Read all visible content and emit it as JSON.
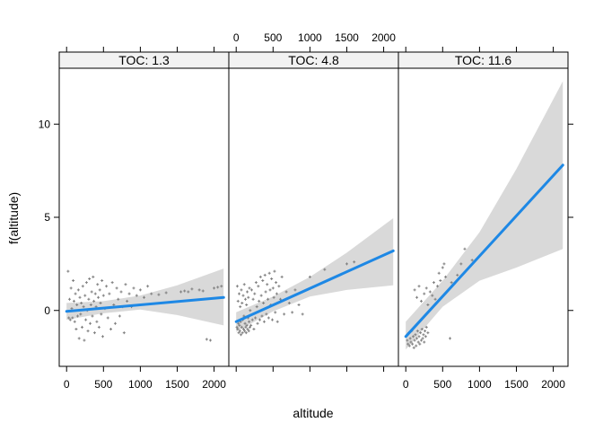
{
  "chart_data": {
    "type": "scatter",
    "title": "",
    "xlabel": "altitude",
    "ylabel": "f(altitude)",
    "xlim": [
      -100,
      2200
    ],
    "ylim": [
      -3,
      13
    ],
    "x_ticks": [
      0,
      500,
      1000,
      1500,
      2000
    ],
    "x_tick_labels": [
      "0",
      "500",
      "1000",
      "1500",
      "2000"
    ],
    "y_ticks": [
      0,
      5,
      10
    ],
    "y_tick_labels": [
      "0",
      "5",
      "10"
    ],
    "colors": {
      "fit_line": "#1e88e5",
      "band": "#d9d9d9",
      "points": "#808080",
      "strip": "#f2f2f2"
    },
    "panels": [
      {
        "label": "TOC: 1.3",
        "fit": {
          "x": [
            0,
            2130
          ],
          "y": [
            -0.05,
            0.7
          ]
        },
        "band": {
          "x": [
            0,
            500,
            1000,
            1500,
            2130
          ],
          "lower": [
            -0.5,
            -0.15,
            0.05,
            -0.25,
            -0.8
          ],
          "upper": [
            0.4,
            0.5,
            0.8,
            1.35,
            2.25
          ]
        },
        "points": [
          [
            20,
            2.1
          ],
          [
            30,
            -0.4
          ],
          [
            40,
            0.6
          ],
          [
            50,
            -0.5
          ],
          [
            60,
            1.2
          ],
          [
            70,
            0.1
          ],
          [
            80,
            -0.4
          ],
          [
            90,
            1.6
          ],
          [
            100,
            0.5
          ],
          [
            110,
            -0.6
          ],
          [
            120,
            0.9
          ],
          [
            130,
            -1.0
          ],
          [
            140,
            0.3
          ],
          [
            150,
            -0.3
          ],
          [
            160,
            1.1
          ],
          [
            170,
            -1.5
          ],
          [
            180,
            0.7
          ],
          [
            190,
            -0.2
          ],
          [
            200,
            0.4
          ],
          [
            210,
            -0.9
          ],
          [
            220,
            1.3
          ],
          [
            230,
            0.2
          ],
          [
            240,
            -1.6
          ],
          [
            250,
            0.8
          ],
          [
            260,
            -0.5
          ],
          [
            270,
            1.5
          ],
          [
            280,
            0.0
          ],
          [
            290,
            -1.1
          ],
          [
            300,
            0.6
          ],
          [
            310,
            1.7
          ],
          [
            320,
            -0.7
          ],
          [
            330,
            0.3
          ],
          [
            340,
            1.0
          ],
          [
            350,
            -0.3
          ],
          [
            360,
            1.8
          ],
          [
            370,
            0.5
          ],
          [
            380,
            -1.2
          ],
          [
            390,
            0.9
          ],
          [
            400,
            0.2
          ],
          [
            410,
            -0.6
          ],
          [
            420,
            1.4
          ],
          [
            430,
            0.7
          ],
          [
            440,
            -0.9
          ],
          [
            450,
            1.1
          ],
          [
            460,
            0.4
          ],
          [
            470,
            -0.2
          ],
          [
            480,
            1.6
          ],
          [
            490,
            -1.4
          ],
          [
            500,
            0.8
          ],
          [
            520,
            0.1
          ],
          [
            540,
            1.3
          ],
          [
            560,
            -0.4
          ],
          [
            580,
            0.9
          ],
          [
            600,
            -1.0
          ],
          [
            620,
            1.5
          ],
          [
            640,
            0.3
          ],
          [
            660,
            -0.7
          ],
          [
            680,
            1.2
          ],
          [
            700,
            0.6
          ],
          [
            720,
            -0.3
          ],
          [
            740,
            1.0
          ],
          [
            760,
            0.2
          ],
          [
            780,
            -1.2
          ],
          [
            800,
            1.4
          ],
          [
            820,
            0.5
          ],
          [
            850,
            0.9
          ],
          [
            880,
            0.2
          ],
          [
            910,
            1.2
          ],
          [
            950,
            0.8
          ],
          [
            1000,
            1.1
          ],
          [
            1050,
            0.7
          ],
          [
            1100,
            1.3
          ],
          [
            1150,
            0.9
          ],
          [
            1250,
            0.85
          ],
          [
            1350,
            0.95
          ],
          [
            1550,
            1.0
          ],
          [
            1600,
            1.05
          ],
          [
            1650,
            1.0
          ],
          [
            1700,
            1.15
          ],
          [
            1800,
            1.1
          ],
          [
            1850,
            1.05
          ],
          [
            1900,
            -1.55
          ],
          [
            1950,
            -1.6
          ],
          [
            2000,
            1.2
          ],
          [
            2050,
            1.25
          ],
          [
            2100,
            1.3
          ]
        ]
      },
      {
        "label": "TOC: 4.8",
        "fit": {
          "x": [
            0,
            2130
          ],
          "y": [
            -0.6,
            3.2
          ]
        },
        "band": {
          "x": [
            0,
            500,
            1000,
            1500,
            2130
          ],
          "lower": [
            -1.15,
            -0.05,
            0.75,
            1.1,
            1.35
          ],
          "upper": [
            -0.1,
            0.75,
            1.8,
            3.1,
            4.95
          ]
        },
        "points": [
          [
            10,
            -0.9
          ],
          [
            15,
            1.3
          ],
          [
            20,
            -1.0
          ],
          [
            25,
            0.5
          ],
          [
            30,
            -0.7
          ],
          [
            35,
            -1.2
          ],
          [
            40,
            0.9
          ],
          [
            45,
            -0.8
          ],
          [
            50,
            -1.1
          ],
          [
            55,
            0.2
          ],
          [
            60,
            -0.6
          ],
          [
            65,
            -1.3
          ],
          [
            70,
            1.1
          ],
          [
            75,
            -0.9
          ],
          [
            80,
            0.4
          ],
          [
            85,
            -1.2
          ],
          [
            90,
            -0.5
          ],
          [
            95,
            0.8
          ],
          [
            100,
            -1.0
          ],
          [
            105,
            -0.3
          ],
          [
            110,
            1.4
          ],
          [
            115,
            -1.1
          ],
          [
            120,
            -0.7
          ],
          [
            125,
            0.6
          ],
          [
            130,
            -0.9
          ],
          [
            135,
            -1.2
          ],
          [
            140,
            0.3
          ],
          [
            145,
            -0.8
          ],
          [
            150,
            1.0
          ],
          [
            155,
            -1.0
          ],
          [
            160,
            -0.4
          ],
          [
            165,
            0.7
          ],
          [
            170,
            -1.1
          ],
          [
            175,
            -0.6
          ],
          [
            180,
            1.2
          ],
          [
            185,
            -0.9
          ],
          [
            190,
            0.0
          ],
          [
            200,
            -0.8
          ],
          [
            210,
            1.1
          ],
          [
            220,
            -0.5
          ],
          [
            230,
            0.6
          ],
          [
            240,
            -1.0
          ],
          [
            250,
            0.9
          ],
          [
            260,
            -0.4
          ],
          [
            270,
            1.5
          ],
          [
            280,
            0.2
          ],
          [
            290,
            -0.7
          ],
          [
            300,
            1.3
          ],
          [
            310,
            0.5
          ],
          [
            320,
            -0.5
          ],
          [
            330,
            1.8
          ],
          [
            340,
            0.8
          ],
          [
            350,
            -0.3
          ],
          [
            360,
            1.6
          ],
          [
            370,
            0.4
          ],
          [
            380,
            -0.6
          ],
          [
            390,
            1.9
          ],
          [
            400,
            1.0
          ],
          [
            410,
            -0.2
          ],
          [
            420,
            1.4
          ],
          [
            430,
            0.6
          ],
          [
            440,
            -0.4
          ],
          [
            450,
            2.0
          ],
          [
            460,
            1.1
          ],
          [
            470,
            0.3
          ],
          [
            480,
            1.7
          ],
          [
            490,
            -0.5
          ],
          [
            500,
            1.2
          ],
          [
            510,
            0.7
          ],
          [
            520,
            2.1
          ],
          [
            530,
            -0.1
          ],
          [
            540,
            1.5
          ],
          [
            550,
            0.9
          ],
          [
            560,
            -0.6
          ],
          [
            580,
            1.3
          ],
          [
            600,
            0.6
          ],
          [
            620,
            1.8
          ],
          [
            650,
            -0.2
          ],
          [
            680,
            1.0
          ],
          [
            720,
            0.4
          ],
          [
            760,
            -0.1
          ],
          [
            800,
            1.1
          ],
          [
            850,
            0.3
          ],
          [
            900,
            -0.2
          ],
          [
            1000,
            1.8
          ],
          [
            1200,
            2.2
          ],
          [
            1500,
            2.5
          ],
          [
            1600,
            2.6
          ]
        ]
      },
      {
        "label": "TOC: 11.6",
        "fit": {
          "x": [
            0,
            2130
          ],
          "y": [
            -1.4,
            7.8
          ]
        },
        "band": {
          "x": [
            0,
            500,
            1000,
            1500,
            2130
          ],
          "lower": [
            -2.1,
            0.2,
            1.6,
            2.3,
            3.3
          ],
          "upper": [
            -0.6,
            1.6,
            4.2,
            7.6,
            12.3
          ]
        },
        "points": [
          [
            20,
            -1.6
          ],
          [
            30,
            -1.8
          ],
          [
            40,
            -1.2
          ],
          [
            50,
            -1.9
          ],
          [
            60,
            -1.5
          ],
          [
            70,
            -1.7
          ],
          [
            80,
            -1.1
          ],
          [
            90,
            -1.8
          ],
          [
            100,
            -1.4
          ],
          [
            110,
            -2.0
          ],
          [
            120,
            -1.6
          ],
          [
            130,
            -1.3
          ],
          [
            140,
            -1.9
          ],
          [
            150,
            -1.5
          ],
          [
            160,
            -1.1
          ],
          [
            170,
            -1.7
          ],
          [
            180,
            -1.4
          ],
          [
            190,
            -1.8
          ],
          [
            200,
            -1.2
          ],
          [
            210,
            -1.6
          ],
          [
            220,
            -1.0
          ],
          [
            230,
            -1.5
          ],
          [
            240,
            -1.3
          ],
          [
            250,
            -1.7
          ],
          [
            260,
            -1.1
          ],
          [
            270,
            -1.4
          ],
          [
            280,
            -0.9
          ],
          [
            300,
            -1.2
          ],
          [
            120,
            1.1
          ],
          [
            150,
            0.7
          ],
          [
            180,
            1.3
          ],
          [
            210,
            0.5
          ],
          [
            250,
            0.9
          ],
          [
            280,
            1.2
          ],
          [
            300,
            0.3
          ],
          [
            330,
            1.0
          ],
          [
            360,
            0.8
          ],
          [
            380,
            1.5
          ],
          [
            400,
            0.6
          ],
          [
            430,
            1.3
          ],
          [
            450,
            2.0
          ],
          [
            470,
            1.6
          ],
          [
            500,
            2.3
          ],
          [
            520,
            2.5
          ],
          [
            540,
            1.8
          ],
          [
            600,
            -1.5
          ],
          [
            620,
            1.5
          ],
          [
            700,
            1.9
          ],
          [
            750,
            2.5
          ],
          [
            800,
            3.3
          ],
          [
            900,
            2.7
          ]
        ]
      }
    ]
  }
}
